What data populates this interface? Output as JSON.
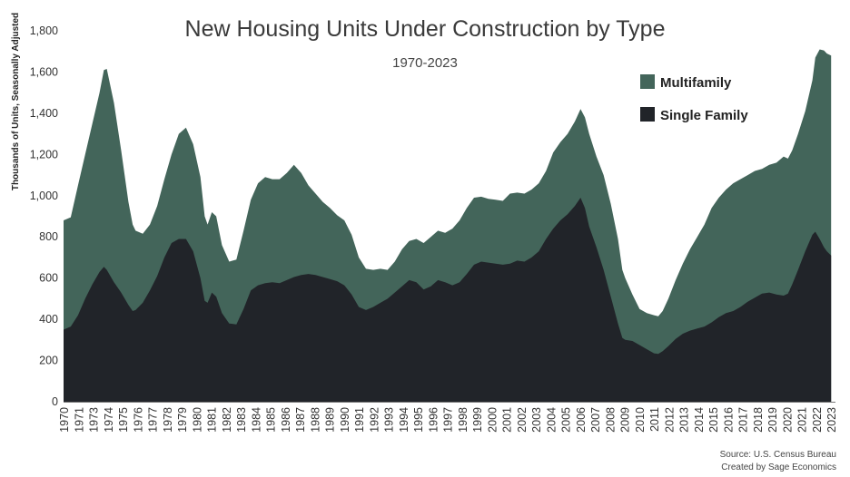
{
  "chart_data": {
    "type": "area",
    "stacked": true,
    "title": "New Housing Units Under Construction by Type",
    "subtitle": "1970-2023",
    "ylabel": "Thousands of Units, Seasonally Adjusted",
    "xlabel": "",
    "ylim": [
      0,
      1800
    ],
    "xlim": [
      1970,
      2023.6
    ],
    "y_ticks": [
      "0",
      "200",
      "400",
      "600",
      "800",
      "1,000",
      "1,200",
      "1,400",
      "1,600",
      "1,800"
    ],
    "x_ticks": [
      "1970",
      "1971",
      "1973",
      "1974",
      "1975",
      "1976",
      "1977",
      "1978",
      "1979",
      "1980",
      "1981",
      "1982",
      "1983",
      "1984",
      "1985",
      "1986",
      "1987",
      "1988",
      "1989",
      "1990",
      "1991",
      "1992",
      "1993",
      "1994",
      "1995",
      "1996",
      "1997",
      "1998",
      "1999",
      "2000",
      "2001",
      "2002",
      "2003",
      "2004",
      "2005",
      "2006",
      "2007",
      "2008",
      "2009",
      "2010",
      "2011",
      "2012",
      "2013",
      "2014",
      "2015",
      "2016",
      "2017",
      "2018",
      "2019",
      "2020",
      "2021",
      "2022",
      "2023"
    ],
    "grid": false,
    "legend_position": "top-right",
    "series": [
      {
        "name": "Single Family",
        "color": "#212429",
        "points": [
          [
            1970.0,
            350
          ],
          [
            1970.5,
            365
          ],
          [
            1971.0,
            420
          ],
          [
            1971.5,
            500
          ],
          [
            1972.0,
            570
          ],
          [
            1972.5,
            630
          ],
          [
            1972.8,
            655
          ],
          [
            1973.0,
            640
          ],
          [
            1973.5,
            580
          ],
          [
            1974.0,
            530
          ],
          [
            1974.5,
            470
          ],
          [
            1974.8,
            440
          ],
          [
            1975.0,
            445
          ],
          [
            1975.5,
            480
          ],
          [
            1976.0,
            540
          ],
          [
            1976.5,
            610
          ],
          [
            1977.0,
            700
          ],
          [
            1977.5,
            770
          ],
          [
            1978.0,
            790
          ],
          [
            1978.5,
            790
          ],
          [
            1979.0,
            730
          ],
          [
            1979.5,
            600
          ],
          [
            1979.8,
            490
          ],
          [
            1980.0,
            480
          ],
          [
            1980.3,
            530
          ],
          [
            1980.6,
            510
          ],
          [
            1981.0,
            430
          ],
          [
            1981.5,
            380
          ],
          [
            1982.0,
            375
          ],
          [
            1982.5,
            450
          ],
          [
            1983.0,
            540
          ],
          [
            1983.5,
            565
          ],
          [
            1984.0,
            575
          ],
          [
            1984.5,
            580
          ],
          [
            1985.0,
            575
          ],
          [
            1985.5,
            590
          ],
          [
            1986.0,
            605
          ],
          [
            1986.5,
            615
          ],
          [
            1987.0,
            620
          ],
          [
            1987.5,
            615
          ],
          [
            1988.0,
            605
          ],
          [
            1988.5,
            595
          ],
          [
            1989.0,
            585
          ],
          [
            1989.5,
            565
          ],
          [
            1990.0,
            520
          ],
          [
            1990.5,
            460
          ],
          [
            1991.0,
            445
          ],
          [
            1991.5,
            460
          ],
          [
            1992.0,
            480
          ],
          [
            1992.5,
            500
          ],
          [
            1993.0,
            530
          ],
          [
            1993.5,
            560
          ],
          [
            1994.0,
            590
          ],
          [
            1994.5,
            580
          ],
          [
            1995.0,
            545
          ],
          [
            1995.5,
            560
          ],
          [
            1996.0,
            590
          ],
          [
            1996.5,
            580
          ],
          [
            1997.0,
            565
          ],
          [
            1997.5,
            580
          ],
          [
            1998.0,
            620
          ],
          [
            1998.5,
            665
          ],
          [
            1999.0,
            680
          ],
          [
            1999.5,
            675
          ],
          [
            2000.0,
            670
          ],
          [
            2000.5,
            665
          ],
          [
            2001.0,
            670
          ],
          [
            2001.5,
            685
          ],
          [
            2002.0,
            680
          ],
          [
            2002.5,
            700
          ],
          [
            2003.0,
            730
          ],
          [
            2003.5,
            790
          ],
          [
            2004.0,
            840
          ],
          [
            2004.5,
            880
          ],
          [
            2005.0,
            910
          ],
          [
            2005.5,
            950
          ],
          [
            2005.9,
            990
          ],
          [
            2006.2,
            940
          ],
          [
            2006.5,
            850
          ],
          [
            2007.0,
            750
          ],
          [
            2007.5,
            640
          ],
          [
            2008.0,
            510
          ],
          [
            2008.5,
            380
          ],
          [
            2008.8,
            310
          ],
          [
            2009.0,
            300
          ],
          [
            2009.5,
            295
          ],
          [
            2010.0,
            275
          ],
          [
            2010.5,
            255
          ],
          [
            2011.0,
            235
          ],
          [
            2011.3,
            232
          ],
          [
            2011.6,
            245
          ],
          [
            2012.0,
            270
          ],
          [
            2012.5,
            305
          ],
          [
            2013.0,
            330
          ],
          [
            2013.5,
            345
          ],
          [
            2014.0,
            355
          ],
          [
            2014.5,
            365
          ],
          [
            2015.0,
            385
          ],
          [
            2015.5,
            410
          ],
          [
            2016.0,
            430
          ],
          [
            2016.5,
            440
          ],
          [
            2017.0,
            460
          ],
          [
            2017.5,
            485
          ],
          [
            2018.0,
            505
          ],
          [
            2018.5,
            525
          ],
          [
            2019.0,
            530
          ],
          [
            2019.5,
            520
          ],
          [
            2020.0,
            515
          ],
          [
            2020.3,
            525
          ],
          [
            2020.6,
            570
          ],
          [
            2021.0,
            640
          ],
          [
            2021.5,
            730
          ],
          [
            2022.0,
            810
          ],
          [
            2022.2,
            825
          ],
          [
            2022.5,
            790
          ],
          [
            2022.8,
            750
          ],
          [
            2023.0,
            730
          ],
          [
            2023.3,
            710
          ]
        ]
      },
      {
        "name": "Multifamily",
        "color": "#43655a",
        "points": [
          [
            1970.0,
            880
          ],
          [
            1970.5,
            895
          ],
          [
            1971.0,
            1050
          ],
          [
            1971.5,
            1200
          ],
          [
            1972.0,
            1350
          ],
          [
            1972.5,
            1500
          ],
          [
            1972.8,
            1610
          ],
          [
            1973.0,
            1615
          ],
          [
            1973.5,
            1450
          ],
          [
            1974.0,
            1220
          ],
          [
            1974.5,
            970
          ],
          [
            1974.8,
            860
          ],
          [
            1975.0,
            830
          ],
          [
            1975.5,
            815
          ],
          [
            1976.0,
            860
          ],
          [
            1976.5,
            950
          ],
          [
            1977.0,
            1080
          ],
          [
            1977.5,
            1200
          ],
          [
            1978.0,
            1300
          ],
          [
            1978.5,
            1330
          ],
          [
            1979.0,
            1250
          ],
          [
            1979.5,
            1090
          ],
          [
            1979.8,
            900
          ],
          [
            1980.0,
            860
          ],
          [
            1980.3,
            920
          ],
          [
            1980.6,
            900
          ],
          [
            1981.0,
            760
          ],
          [
            1981.5,
            680
          ],
          [
            1982.0,
            690
          ],
          [
            1982.5,
            830
          ],
          [
            1983.0,
            980
          ],
          [
            1983.5,
            1060
          ],
          [
            1984.0,
            1090
          ],
          [
            1984.5,
            1080
          ],
          [
            1985.0,
            1080
          ],
          [
            1985.5,
            1110
          ],
          [
            1986.0,
            1150
          ],
          [
            1986.5,
            1110
          ],
          [
            1987.0,
            1050
          ],
          [
            1987.5,
            1010
          ],
          [
            1988.0,
            970
          ],
          [
            1988.5,
            940
          ],
          [
            1989.0,
            905
          ],
          [
            1989.5,
            880
          ],
          [
            1990.0,
            810
          ],
          [
            1990.5,
            700
          ],
          [
            1991.0,
            645
          ],
          [
            1991.5,
            640
          ],
          [
            1992.0,
            645
          ],
          [
            1992.5,
            640
          ],
          [
            1993.0,
            680
          ],
          [
            1993.5,
            740
          ],
          [
            1994.0,
            780
          ],
          [
            1994.5,
            790
          ],
          [
            1995.0,
            770
          ],
          [
            1995.5,
            800
          ],
          [
            1996.0,
            830
          ],
          [
            1996.5,
            820
          ],
          [
            1997.0,
            840
          ],
          [
            1997.5,
            880
          ],
          [
            1998.0,
            940
          ],
          [
            1998.5,
            990
          ],
          [
            1999.0,
            995
          ],
          [
            1999.5,
            985
          ],
          [
            2000.0,
            980
          ],
          [
            2000.5,
            975
          ],
          [
            2001.0,
            1010
          ],
          [
            2001.5,
            1015
          ],
          [
            2002.0,
            1010
          ],
          [
            2002.5,
            1030
          ],
          [
            2003.0,
            1060
          ],
          [
            2003.5,
            1120
          ],
          [
            2004.0,
            1210
          ],
          [
            2004.5,
            1260
          ],
          [
            2005.0,
            1300
          ],
          [
            2005.5,
            1360
          ],
          [
            2005.9,
            1420
          ],
          [
            2006.2,
            1380
          ],
          [
            2006.5,
            1300
          ],
          [
            2007.0,
            1190
          ],
          [
            2007.5,
            1100
          ],
          [
            2008.0,
            960
          ],
          [
            2008.5,
            790
          ],
          [
            2008.8,
            640
          ],
          [
            2009.0,
            600
          ],
          [
            2009.5,
            520
          ],
          [
            2010.0,
            450
          ],
          [
            2010.5,
            430
          ],
          [
            2011.0,
            420
          ],
          [
            2011.3,
            415
          ],
          [
            2011.6,
            440
          ],
          [
            2012.0,
            500
          ],
          [
            2012.5,
            590
          ],
          [
            2013.0,
            670
          ],
          [
            2013.5,
            740
          ],
          [
            2014.0,
            800
          ],
          [
            2014.5,
            860
          ],
          [
            2015.0,
            940
          ],
          [
            2015.5,
            990
          ],
          [
            2016.0,
            1030
          ],
          [
            2016.5,
            1060
          ],
          [
            2017.0,
            1080
          ],
          [
            2017.5,
            1100
          ],
          [
            2018.0,
            1120
          ],
          [
            2018.5,
            1130
          ],
          [
            2019.0,
            1150
          ],
          [
            2019.5,
            1160
          ],
          [
            2020.0,
            1190
          ],
          [
            2020.3,
            1180
          ],
          [
            2020.6,
            1220
          ],
          [
            2021.0,
            1300
          ],
          [
            2021.5,
            1410
          ],
          [
            2022.0,
            1560
          ],
          [
            2022.2,
            1670
          ],
          [
            2022.5,
            1710
          ],
          [
            2022.8,
            1705
          ],
          [
            2023.0,
            1690
          ],
          [
            2023.3,
            1680
          ]
        ]
      }
    ],
    "source": "Source: U.S. Census Bureau",
    "credit": "Created by Sage Economics"
  }
}
